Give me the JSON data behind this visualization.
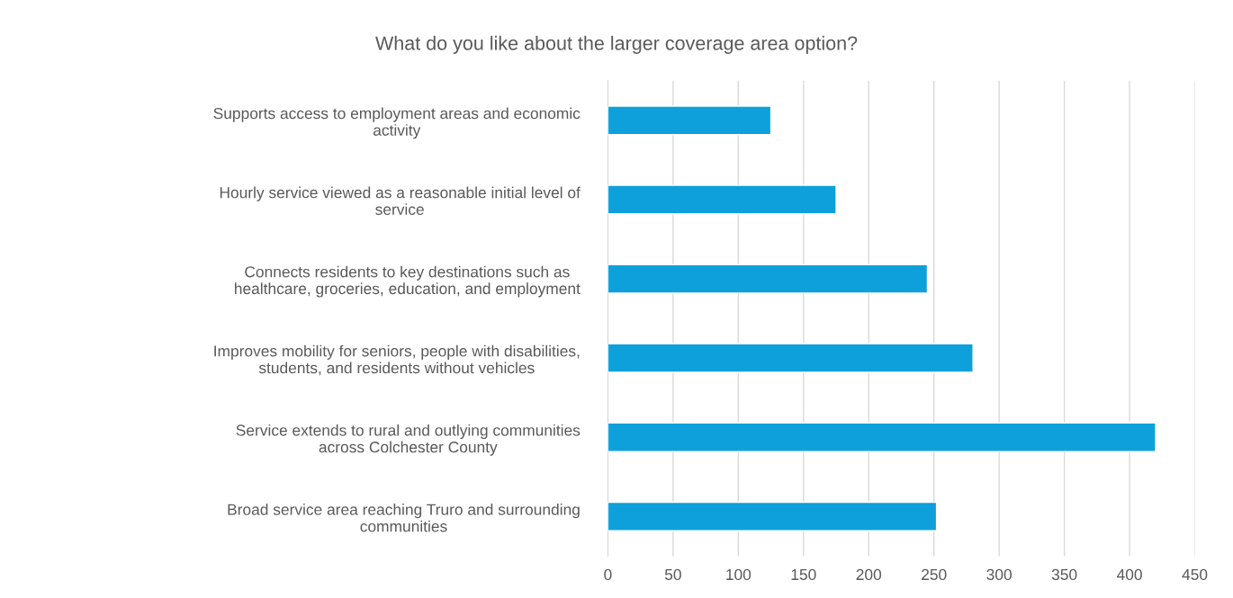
{
  "chart_data": {
    "type": "bar",
    "orientation": "horizontal",
    "title": "What do you like about the larger coverage area option?",
    "categories": [
      "Supports access to employment areas and economic\nactivity",
      "Hourly service viewed as a reasonable initial level of\nservice",
      "Connects residents to key destinations such as\nhealthcare, groceries, education, and employment",
      "Improves mobility for seniors, people with disabilities,\nstudents, and residents without vehicles",
      "Service extends to rural and outlying communities\nacross Colchester County",
      "Broad service area reaching Truro and surrounding\ncommunities"
    ],
    "values": [
      125,
      175,
      245,
      280,
      420,
      252
    ],
    "color": "#0ea0da",
    "xlim": [
      0,
      450
    ],
    "xticks": [
      0,
      50,
      100,
      150,
      200,
      250,
      300,
      350,
      400,
      450
    ],
    "grid": "x",
    "legend": false
  }
}
